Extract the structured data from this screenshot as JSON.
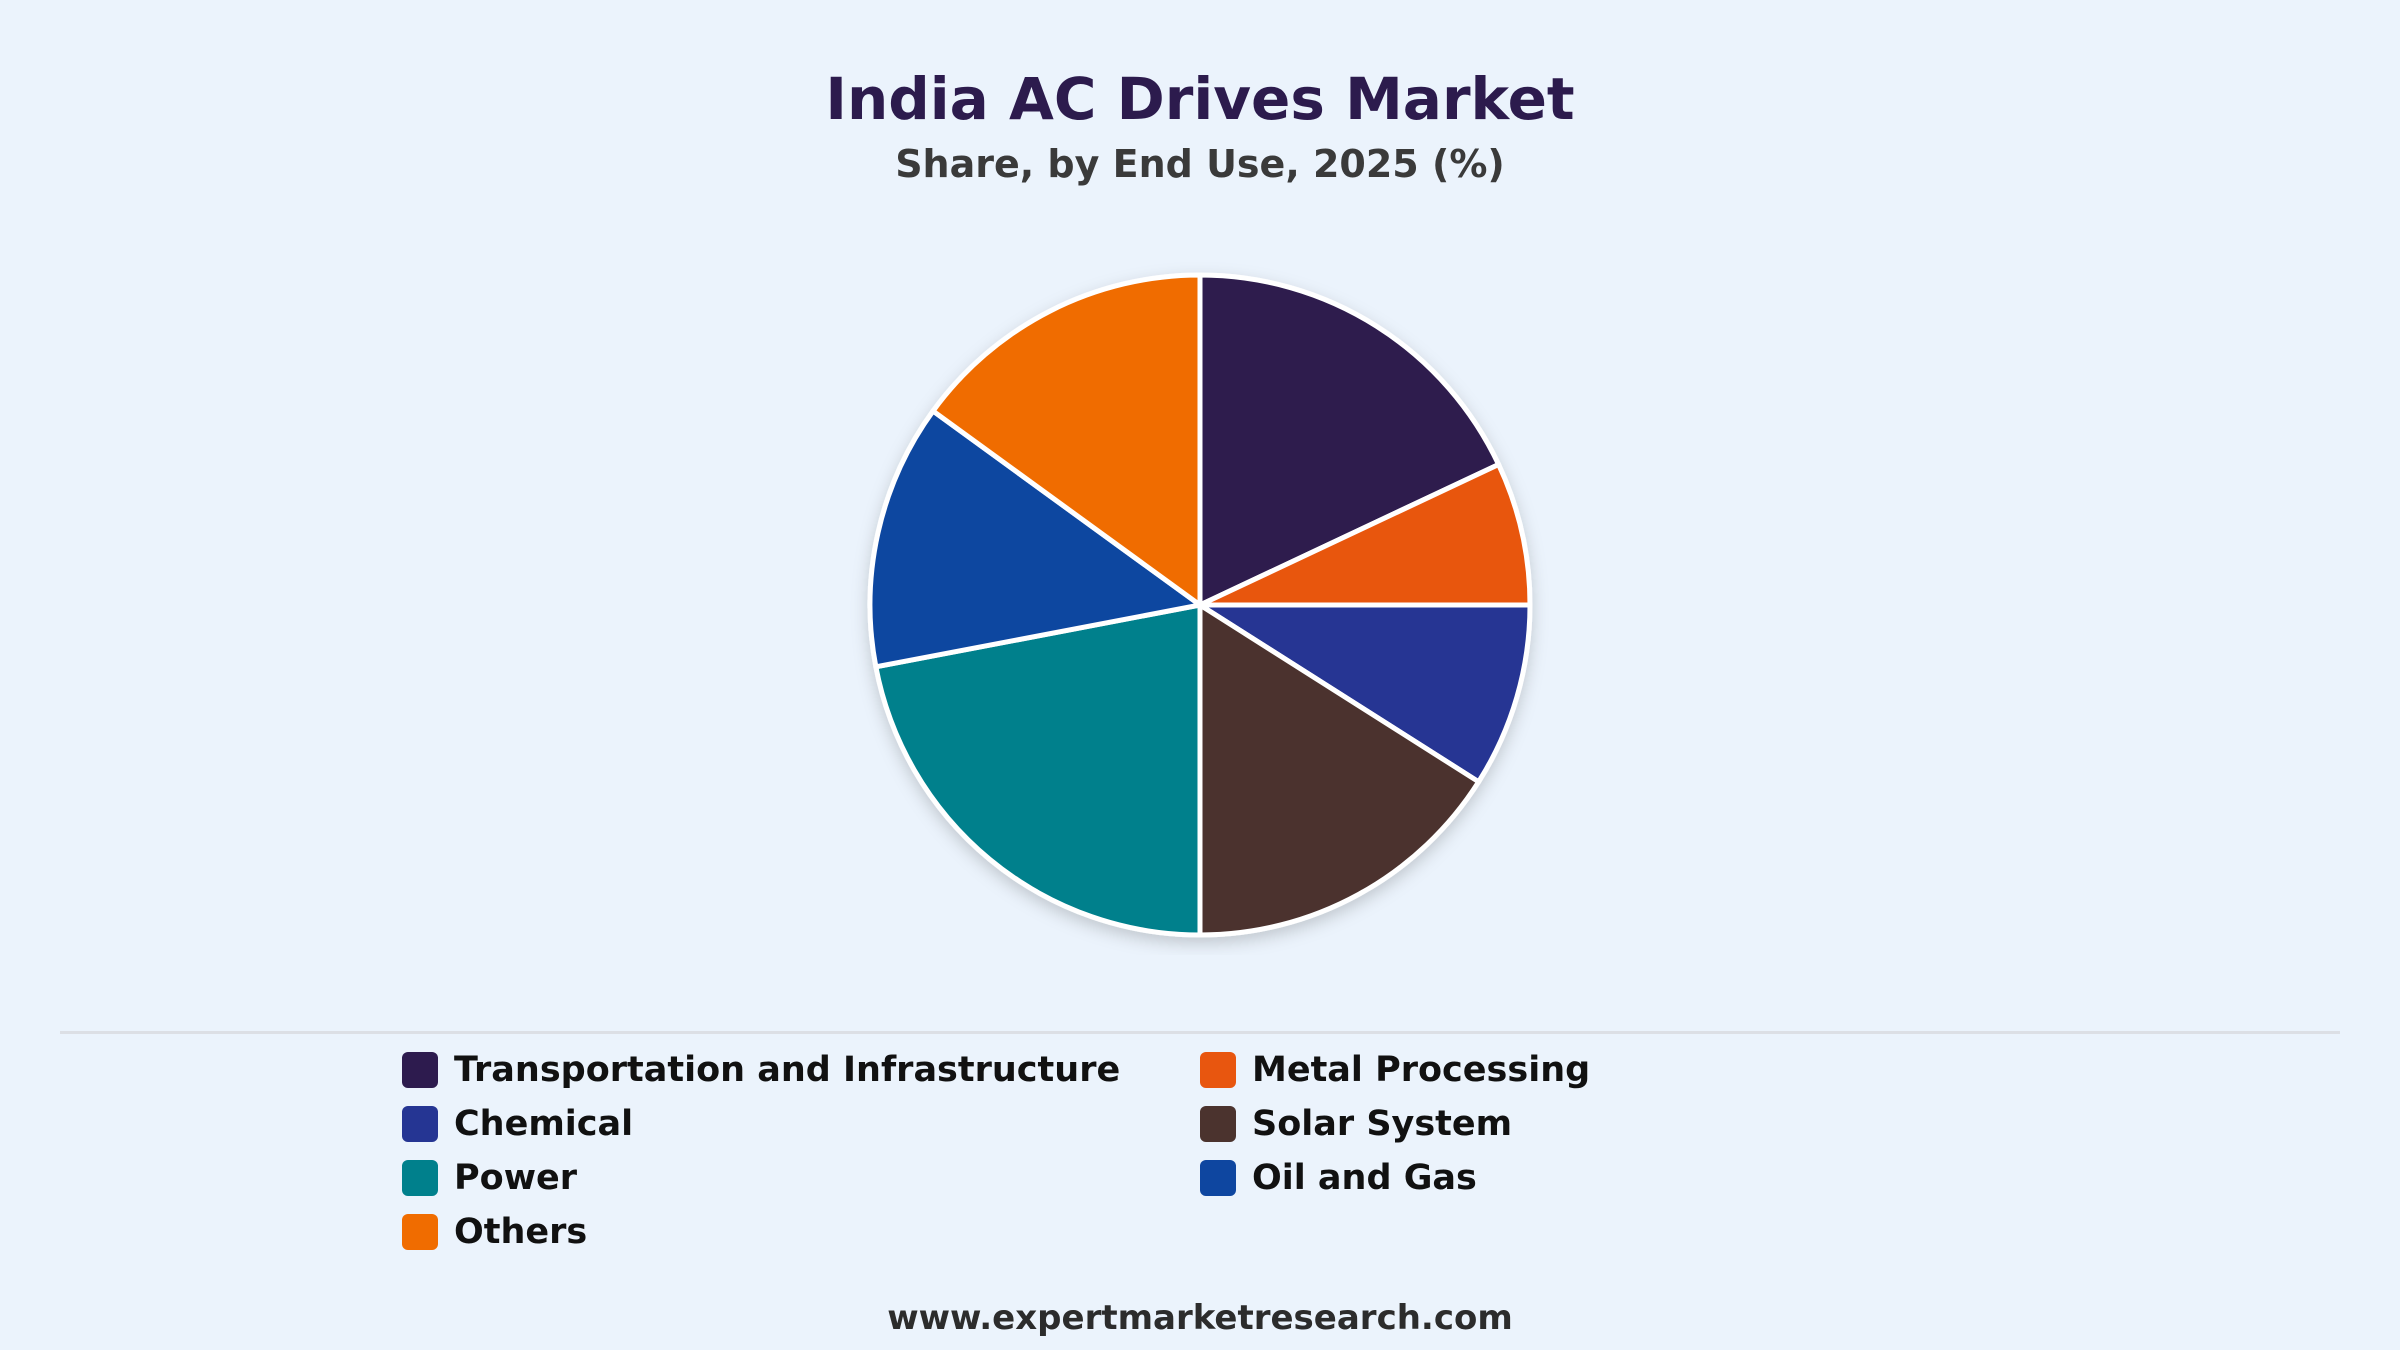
{
  "header": {
    "title": "India AC Drives Market",
    "subtitle": "Share, by End Use, 2025 (%)"
  },
  "footer": {
    "source": "www.expertmarketresearch.com"
  },
  "chart_data": {
    "type": "pie",
    "title": "India AC Drives Market",
    "subtitle": "Share, by End Use, 2025 (%)",
    "legend_position": "bottom",
    "categories": [
      "Transportation and Infrastructure",
      "Metal Processing",
      "Chemical",
      "Solar System",
      "Power",
      "Oil and Gas",
      "Others"
    ],
    "values": [
      18,
      7,
      9,
      16,
      22,
      13,
      15
    ],
    "colors": [
      "#2d1b4e",
      "#e8560f",
      "#253593",
      "#4b332e",
      "#00808c",
      "#0e46a0",
      "#f06c00"
    ]
  }
}
